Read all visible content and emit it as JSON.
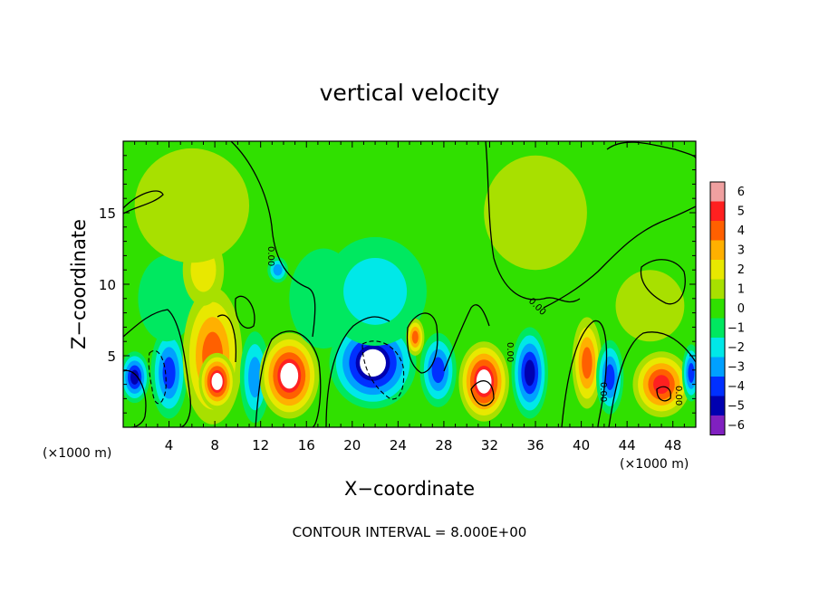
{
  "chart_data": {
    "type": "heatmap",
    "title": "vertical velocity",
    "xlabel": "X−coordinate",
    "ylabel": "Z−coordinate",
    "x_unit_left": "(×1000 m)",
    "x_unit_right": "(×1000 m)",
    "xlim": [
      0,
      50
    ],
    "ylim": [
      0,
      20
    ],
    "x_ticks": [
      4,
      8,
      12,
      16,
      20,
      24,
      28,
      32,
      36,
      40,
      44,
      48
    ],
    "y_ticks": [
      5,
      10,
      15
    ],
    "x_tick_labels": [
      "4",
      "8",
      "12",
      "16",
      "20",
      "24",
      "28",
      "32",
      "36",
      "40",
      "44",
      "48"
    ],
    "y_tick_labels": [
      "5",
      "10",
      "15"
    ],
    "colorbar": {
      "labels": [
        "6",
        "5",
        "4",
        "3",
        "2",
        "1",
        "0",
        "−1",
        "−2",
        "−3",
        "−4",
        "−5",
        "−6"
      ],
      "colors": [
        "#f0a0a0",
        "#ff2020",
        "#ff6000",
        "#ffb000",
        "#e8e800",
        "#a8e000",
        "#30e000",
        "#00e860",
        "#00e8e8",
        "#00a0ff",
        "#0030ff",
        "#0000b0",
        "#8020c0"
      ]
    },
    "contour_label": "0.00",
    "footer": "CONTOUR INTERVAL = 8.000E+00",
    "blobs": [
      {
        "x": 1.0,
        "z": 3.5,
        "rx": 1.3,
        "rz": 1.8,
        "v": -4.5
      },
      {
        "x": 4.0,
        "z": 3.8,
        "rx": 1.6,
        "rz": 3.2,
        "v": -4.2
      },
      {
        "x": 3.8,
        "z": 9.0,
        "rx": 2.5,
        "rz": 3.0,
        "v": -1.2
      },
      {
        "x": 7.8,
        "z": 5.0,
        "rx": 2.6,
        "rz": 4.8,
        "v": 3.8
      },
      {
        "x": 8.2,
        "z": 3.2,
        "rx": 1.6,
        "rz": 2.0,
        "v": 5.8
      },
      {
        "x": 7.0,
        "z": 11.0,
        "rx": 1.8,
        "rz": 2.5,
        "v": 2.2
      },
      {
        "x": 11.5,
        "z": 3.5,
        "rx": 1.3,
        "rz": 3.2,
        "v": -3.0
      },
      {
        "x": 14.5,
        "z": 3.6,
        "rx": 2.6,
        "rz": 3.0,
        "v": 5.6
      },
      {
        "x": 13.5,
        "z": 11.0,
        "rx": 0.9,
        "rz": 0.9,
        "v": -3.4
      },
      {
        "x": 17.5,
        "z": 9.0,
        "rx": 3.0,
        "rz": 3.5,
        "v": -1.0
      },
      {
        "x": 21.8,
        "z": 4.5,
        "rx": 3.8,
        "rz": 3.2,
        "v": -5.8
      },
      {
        "x": 22.0,
        "z": 9.5,
        "rx": 4.5,
        "rz": 3.8,
        "v": -1.6
      },
      {
        "x": 25.5,
        "z": 6.3,
        "rx": 0.8,
        "rz": 1.3,
        "v": 4.0
      },
      {
        "x": 27.5,
        "z": 4.0,
        "rx": 1.6,
        "rz": 2.6,
        "v": -3.6
      },
      {
        "x": 31.5,
        "z": 3.2,
        "rx": 2.2,
        "rz": 2.8,
        "v": 5.6
      },
      {
        "x": 35.5,
        "z": 3.8,
        "rx": 1.6,
        "rz": 3.2,
        "v": -5.2
      },
      {
        "x": 40.5,
        "z": 4.5,
        "rx": 1.3,
        "rz": 3.2,
        "v": 3.6
      },
      {
        "x": 42.5,
        "z": 3.5,
        "rx": 1.2,
        "rz": 2.6,
        "v": -3.6
      },
      {
        "x": 47.0,
        "z": 3.0,
        "rx": 2.5,
        "rz": 2.3,
        "v": 4.6
      },
      {
        "x": 49.6,
        "z": 3.8,
        "rx": 0.8,
        "rz": 2.0,
        "v": -4.0
      },
      {
        "x": 36.0,
        "z": 15.0,
        "rx": 4.5,
        "rz": 4.0,
        "v": 1.2
      },
      {
        "x": 6.0,
        "z": 15.5,
        "rx": 5.0,
        "rz": 4.0,
        "v": 0.9
      },
      {
        "x": 46.0,
        "z": 8.5,
        "rx": 3.0,
        "rz": 2.5,
        "v": 0.8
      }
    ]
  }
}
